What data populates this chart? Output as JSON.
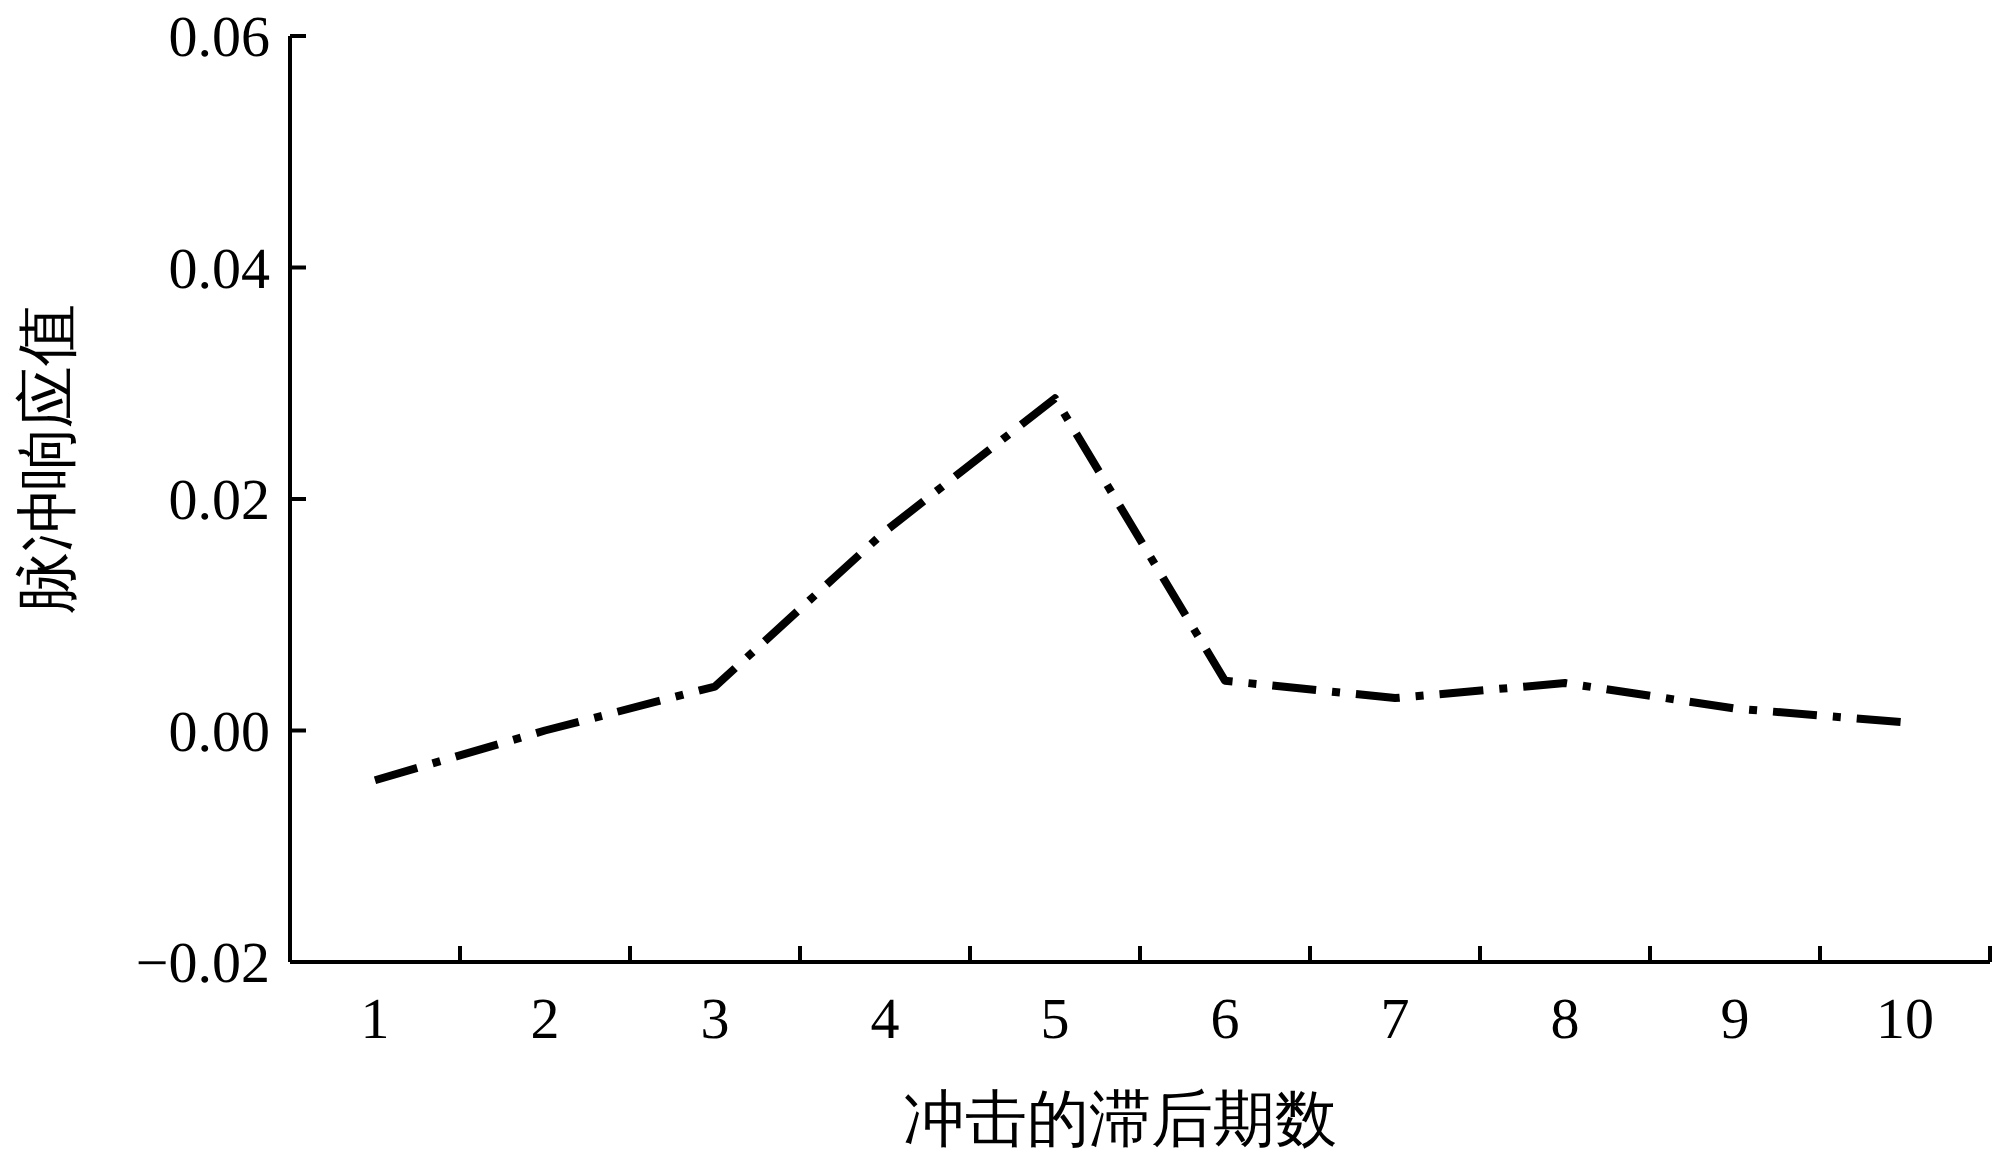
{
  "chart_data": {
    "type": "line",
    "xlabel": "冲击的滞后期数",
    "ylabel": "脉冲响应值",
    "categories": [
      "1",
      "2",
      "3",
      "4",
      "5",
      "6",
      "7",
      "8",
      "9",
      "10"
    ],
    "series": [
      {
        "color": "#000000",
        "values": [
          -0.0043,
          0.0,
          0.0038,
          0.0172,
          0.0287,
          0.0043,
          0.0028,
          0.0041,
          0.0019,
          0.0007
        ]
      }
    ],
    "ylim": [
      -0.02,
      0.06
    ],
    "yticks": [
      {
        "value": -0.02,
        "label": "−0.02"
      },
      {
        "value": 0,
        "label": "0.00"
      },
      {
        "value": 0.02,
        "label": "0.02"
      },
      {
        "value": 0.04,
        "label": "0.04"
      },
      {
        "value": 0.06,
        "label": "0.06"
      }
    ],
    "grid": false,
    "marker": "none",
    "line_style": "dashdot"
  }
}
